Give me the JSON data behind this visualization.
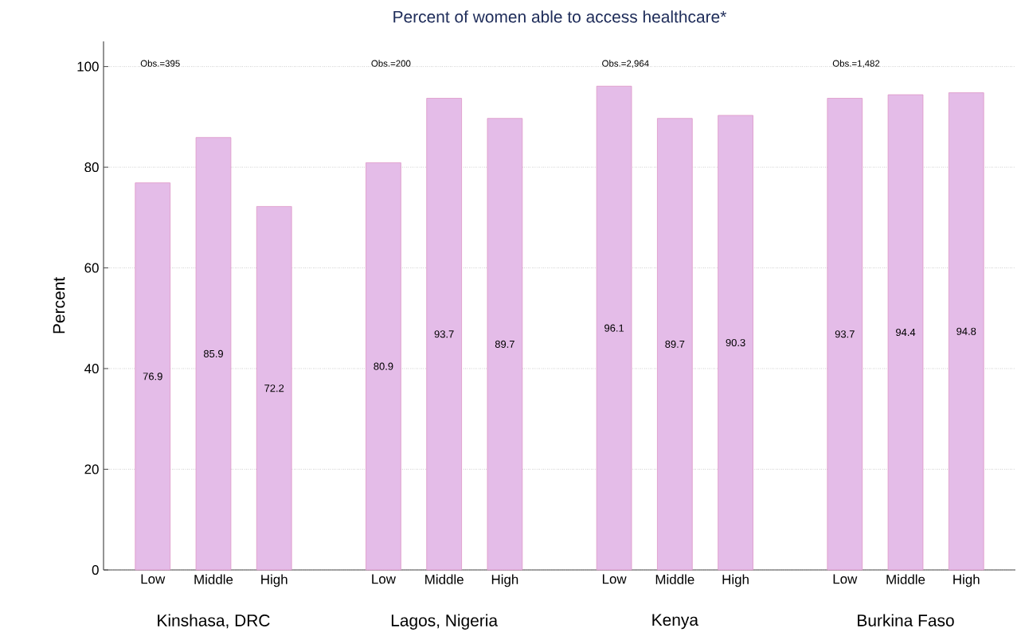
{
  "chart_data": {
    "type": "bar",
    "title": "Percent of women able to access healthcare*",
    "ylabel": "Percent",
    "categories": [
      "Low",
      "Middle",
      "High",
      "Low",
      "Middle",
      "High",
      "Low",
      "Middle",
      "High",
      "Low",
      "Middle",
      "High"
    ],
    "values": [
      76.9,
      85.9,
      72.2,
      80.9,
      93.7,
      89.7,
      96.1,
      89.7,
      90.3,
      93.7,
      94.4,
      94.8
    ],
    "color": "#e4bce8",
    "ylim": [
      0,
      105
    ],
    "yticks": [
      0,
      20,
      40,
      60,
      80,
      100
    ],
    "grid": "y",
    "data_labels": true,
    "annotations": [
      "Obs.=395",
      "Obs.=200",
      "Obs.=2,964",
      "Obs.=1,482",
      "Kinshasa, DRC",
      "Lagos, Nigeria",
      "Kenya",
      "Burkina Faso"
    ]
  }
}
